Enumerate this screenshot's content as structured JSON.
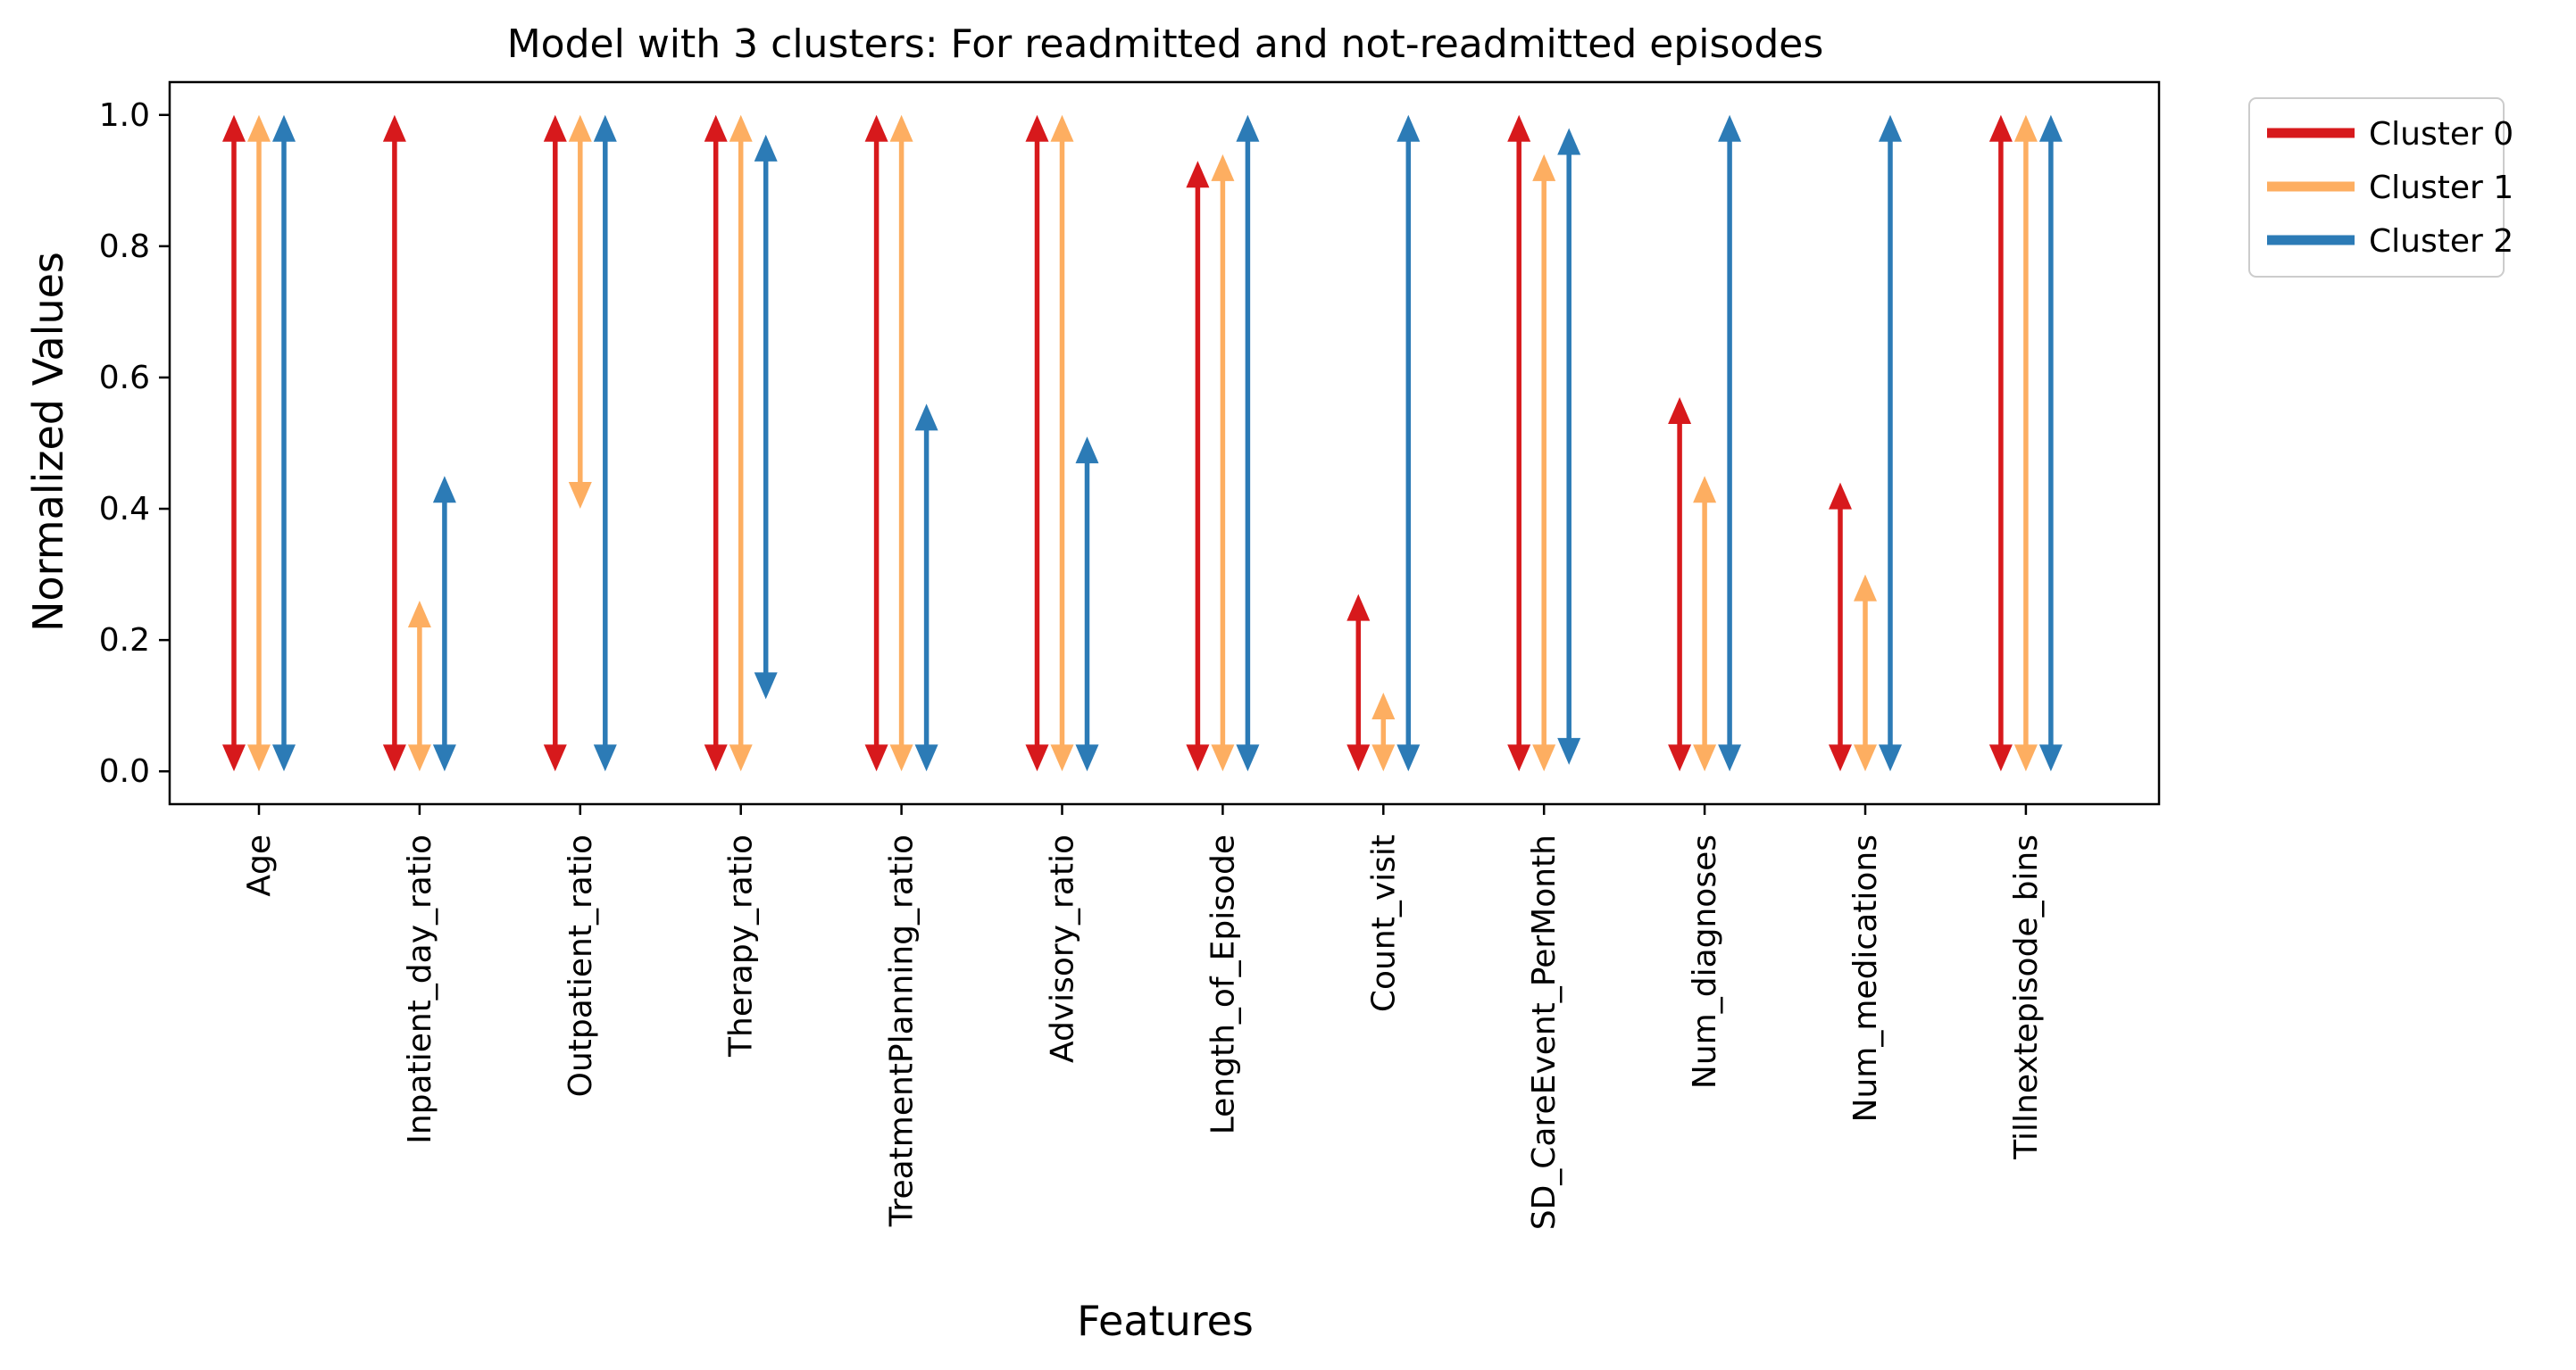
{
  "chart_data": {
    "type": "range-arrow",
    "title": "Model with 3 clusters: For readmitted and not-readmitted episodes",
    "xlabel": "Features",
    "ylabel": "Normalized Values",
    "ylim": [
      -0.05,
      1.05
    ],
    "yticks": [
      "0.0",
      "0.2",
      "0.4",
      "0.6",
      "0.8",
      "1.0"
    ],
    "categories": [
      "Age",
      "Inpatient_day_ratio",
      "Outpatient_ratio",
      "Therapy_ratio",
      "TreatmentPlanning_ratio",
      "Advisory_ratio",
      "Length_of_Episode",
      "Count_visit",
      "SD_CareEvent_PerMonth",
      "Num_diagnoses",
      "Num_medications",
      "Tillnextepisode_bins"
    ],
    "series": [
      {
        "name": "Cluster 0",
        "color": "#d7191c",
        "low": [
          0,
          0,
          0,
          0,
          0,
          0,
          0,
          0,
          0,
          0,
          0,
          0
        ],
        "high": [
          1.0,
          1.0,
          1.0,
          1.0,
          1.0,
          1.0,
          0.93,
          0.27,
          1.0,
          0.57,
          0.44,
          1.0
        ]
      },
      {
        "name": "Cluster 1",
        "color": "#fdae61",
        "low": [
          0,
          0,
          0.4,
          0,
          0,
          0,
          0,
          0,
          0,
          0,
          0,
          0
        ],
        "high": [
          1.0,
          0.26,
          1.0,
          1.0,
          1.0,
          1.0,
          0.94,
          0.12,
          0.94,
          0.45,
          0.3,
          1.0
        ]
      },
      {
        "name": "Cluster 2",
        "color": "#2c7bb6",
        "low": [
          0,
          0,
          0,
          0.11,
          0,
          0,
          0,
          0,
          0.01,
          0,
          0,
          0
        ],
        "high": [
          1.0,
          0.45,
          1.0,
          0.97,
          0.56,
          0.51,
          1.0,
          1.0,
          0.98,
          1.0,
          1.0,
          1.0
        ]
      }
    ],
    "legend_position": "outside-top-right",
    "grid": false
  }
}
